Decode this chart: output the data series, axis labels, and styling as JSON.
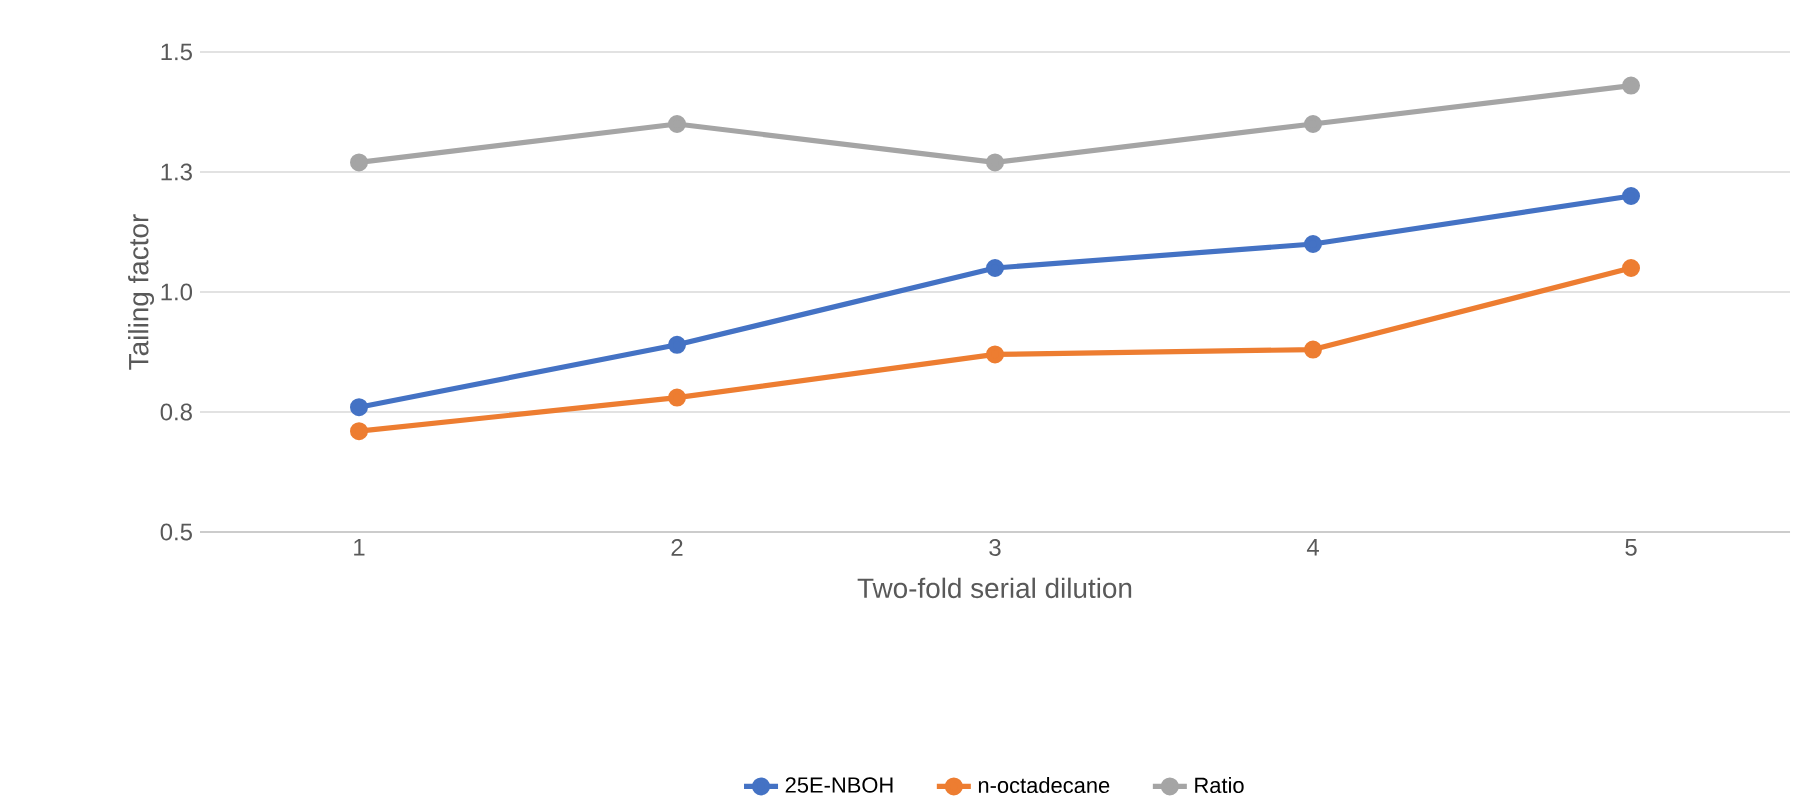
{
  "chart_data": {
    "type": "line",
    "xlabel": "Two-fold serial dilution",
    "ylabel": "Tailing factor",
    "categories": [
      "1",
      "2",
      "3",
      "4",
      "5"
    ],
    "series": [
      {
        "name": "25E-NBOH",
        "color": "#4472c4",
        "values": [
          0.76,
          0.89,
          1.05,
          1.1,
          1.2
        ]
      },
      {
        "name": "n-octadecane",
        "color": "#ed7d31",
        "values": [
          0.71,
          0.78,
          0.87,
          0.88,
          1.05
        ]
      },
      {
        "name": "Ratio",
        "color": "#a5a5a5",
        "values": [
          1.27,
          1.35,
          1.27,
          1.35,
          1.43
        ]
      }
    ],
    "ylim": [
      0.5,
      1.5
    ],
    "yticks": [
      {
        "value": 0.5,
        "label": "0.5"
      },
      {
        "value": 0.75,
        "label": "0.8"
      },
      {
        "value": 1.0,
        "label": "1.0"
      },
      {
        "value": 1.25,
        "label": "1.3"
      },
      {
        "value": 1.5,
        "label": "1.5"
      }
    ],
    "grid": "y",
    "legend": "bottom",
    "marker": "circle",
    "line_style": "solid"
  }
}
